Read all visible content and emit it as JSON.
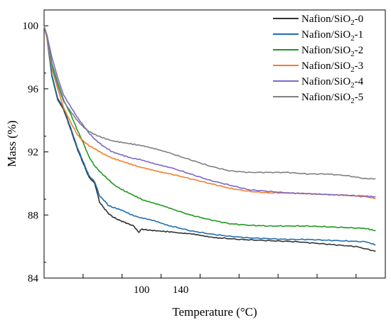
{
  "chart_data": {
    "type": "line",
    "title": "",
    "xlabel": "Temperature (°C)",
    "ylabel": "Mass (%)",
    "xlim": [
      0,
      350
    ],
    "ylim": [
      84,
      101
    ],
    "x_tick_values": [
      100,
      140
    ],
    "x_tick_labels": [
      "100",
      "140"
    ],
    "y_tick_values": [
      84,
      88,
      92,
      96,
      100
    ],
    "y_tick_labels": [
      "84",
      "88",
      "92",
      "96",
      "100"
    ],
    "grid": false,
    "legend_position": "top-right",
    "series": [
      {
        "name": "Nafion/SiO2-0",
        "color": "#333333",
        "x": [
          0,
          3,
          8,
          14,
          20,
          28,
          34,
          40,
          46,
          52,
          57,
          62,
          66,
          70,
          76,
          84,
          92,
          97,
          100,
          106,
          115,
          125,
          135,
          150,
          165,
          180,
          200,
          220,
          240,
          260,
          280,
          300,
          320,
          340
        ],
        "y": [
          100,
          99.2,
          96.8,
          95.3,
          94.7,
          93.3,
          92.2,
          91.3,
          90.4,
          90.0,
          88.8,
          88.4,
          88.1,
          87.9,
          87.7,
          87.5,
          87.3,
          86.9,
          87.1,
          87.05,
          87.0,
          86.95,
          86.9,
          86.8,
          86.65,
          86.55,
          86.45,
          86.4,
          86.35,
          86.3,
          86.2,
          86.1,
          86.0,
          85.7
        ]
      },
      {
        "name": "Nafion/SiO2-1",
        "color": "#1f6fae",
        "x": [
          0,
          3,
          8,
          14,
          20,
          28,
          34,
          40,
          46,
          52,
          57,
          62,
          66,
          70,
          80,
          90,
          100,
          115,
          130,
          150,
          170,
          190,
          210,
          230,
          250,
          270,
          290,
          310,
          330,
          340
        ],
        "y": [
          100,
          99.2,
          96.9,
          95.4,
          94.8,
          93.4,
          92.3,
          91.4,
          90.5,
          90.1,
          89.2,
          88.9,
          88.6,
          88.5,
          88.3,
          88.0,
          87.8,
          87.6,
          87.3,
          87.0,
          86.8,
          86.65,
          86.55,
          86.5,
          86.45,
          86.45,
          86.4,
          86.35,
          86.3,
          86.1
        ]
      },
      {
        "name": "Nafion/SiO2-2",
        "color": "#1f9a1f",
        "x": [
          0,
          3,
          8,
          14,
          20,
          28,
          34,
          40,
          46,
          52,
          58,
          65,
          72,
          80,
          90,
          100,
          115,
          130,
          150,
          170,
          190,
          210,
          230,
          250,
          270,
          290,
          310,
          330,
          340
        ],
        "y": [
          100,
          99.3,
          97.6,
          96.4,
          95.3,
          94.3,
          93.4,
          92.6,
          91.7,
          91.1,
          90.7,
          90.3,
          89.9,
          89.6,
          89.3,
          89.0,
          88.7,
          88.4,
          88.0,
          87.7,
          87.45,
          87.35,
          87.3,
          87.3,
          87.3,
          87.25,
          87.2,
          87.15,
          87.0
        ]
      },
      {
        "name": "Nafion/SiO2-3",
        "color": "#f07f2a",
        "x": [
          0,
          3,
          8,
          14,
          20,
          28,
          34,
          40,
          46,
          52,
          60,
          70,
          80,
          90,
          100,
          115,
          130,
          150,
          170,
          190,
          210,
          230,
          250,
          270,
          290,
          310,
          330,
          340
        ],
        "y": [
          100,
          99.2,
          97.3,
          96.0,
          94.8,
          93.8,
          93.1,
          92.7,
          92.4,
          92.2,
          91.9,
          91.6,
          91.4,
          91.2,
          91.0,
          90.8,
          90.6,
          90.3,
          90.0,
          89.7,
          89.5,
          89.4,
          89.4,
          89.35,
          89.3,
          89.25,
          89.15,
          89.05
        ]
      },
      {
        "name": "Nafion/SiO2-4",
        "color": "#7b68c8",
        "x": [
          0,
          3,
          8,
          14,
          20,
          28,
          34,
          40,
          46,
          52,
          60,
          70,
          80,
          90,
          100,
          115,
          130,
          150,
          170,
          190,
          210,
          230,
          250,
          270,
          290,
          310,
          330,
          340
        ],
        "y": [
          100,
          99.4,
          98.0,
          96.7,
          95.6,
          94.8,
          94.2,
          93.7,
          93.2,
          92.8,
          92.4,
          92.0,
          91.8,
          91.6,
          91.5,
          91.2,
          91.0,
          90.6,
          90.2,
          89.9,
          89.6,
          89.5,
          89.4,
          89.35,
          89.3,
          89.25,
          89.2,
          89.15
        ]
      },
      {
        "name": "Nafion/SiO2-5",
        "color": "#808080",
        "x": [
          0,
          3,
          8,
          14,
          20,
          28,
          34,
          40,
          46,
          52,
          60,
          70,
          80,
          90,
          100,
          115,
          130,
          150,
          170,
          190,
          210,
          230,
          250,
          270,
          290,
          310,
          330,
          340
        ],
        "y": [
          100,
          99.3,
          97.4,
          96.2,
          95.2,
          94.5,
          94.0,
          93.6,
          93.3,
          93.1,
          92.9,
          92.7,
          92.6,
          92.5,
          92.4,
          92.2,
          91.9,
          91.5,
          91.1,
          90.8,
          90.7,
          90.7,
          90.7,
          90.6,
          90.6,
          90.5,
          90.3,
          90.3
        ]
      }
    ]
  }
}
